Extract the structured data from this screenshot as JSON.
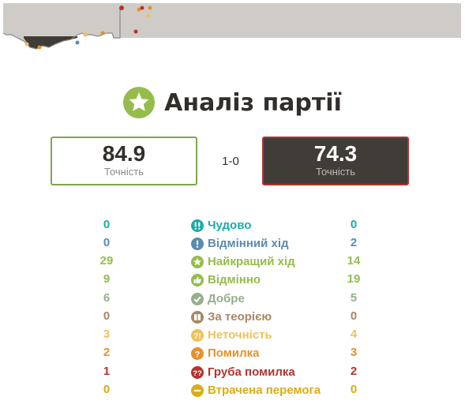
{
  "header": {
    "title": "Аналіз партії",
    "title_icon": "star-icon",
    "title_icon_color": "#96bc4b"
  },
  "scores": {
    "white": {
      "value": "84.9",
      "label": "Точність",
      "border_color": "#7fa650"
    },
    "result": "1-0",
    "black": {
      "value": "74.3",
      "label": "Точність",
      "border_color": "#b23330"
    }
  },
  "classifications": [
    {
      "label": "Чудово",
      "white": "0",
      "black": "0",
      "color": "#1baca6",
      "icon": "double-exclamation-icon"
    },
    {
      "label": "Відмінний хід",
      "white": "0",
      "black": "2",
      "color": "#5c8bb0",
      "icon": "exclamation-icon"
    },
    {
      "label": "Найкращий хід",
      "white": "29",
      "black": "14",
      "color": "#96bc4b",
      "icon": "star-icon"
    },
    {
      "label": "Відмінно",
      "white": "9",
      "black": "19",
      "color": "#96bc4b",
      "icon": "thumbs-up-icon"
    },
    {
      "label": "Добре",
      "white": "6",
      "black": "5",
      "color": "#96af8b",
      "icon": "check-icon"
    },
    {
      "label": "За теорією",
      "white": "0",
      "black": "0",
      "color": "#a88865",
      "icon": "book-icon"
    },
    {
      "label": "Неточність",
      "white": "3",
      "black": "4",
      "color": "#f0c15c",
      "icon": "question-exclamation-icon"
    },
    {
      "label": "Помилка",
      "white": "2",
      "black": "3",
      "color": "#e6912c",
      "icon": "question-icon"
    },
    {
      "label": "Груба помилка",
      "white": "1",
      "black": "2",
      "color": "#b33430",
      "icon": "double-question-icon"
    },
    {
      "label": "Втрачена перемога",
      "white": "0",
      "black": "0",
      "color": "#dbac16",
      "icon": "minus-circle-icon"
    }
  ]
}
